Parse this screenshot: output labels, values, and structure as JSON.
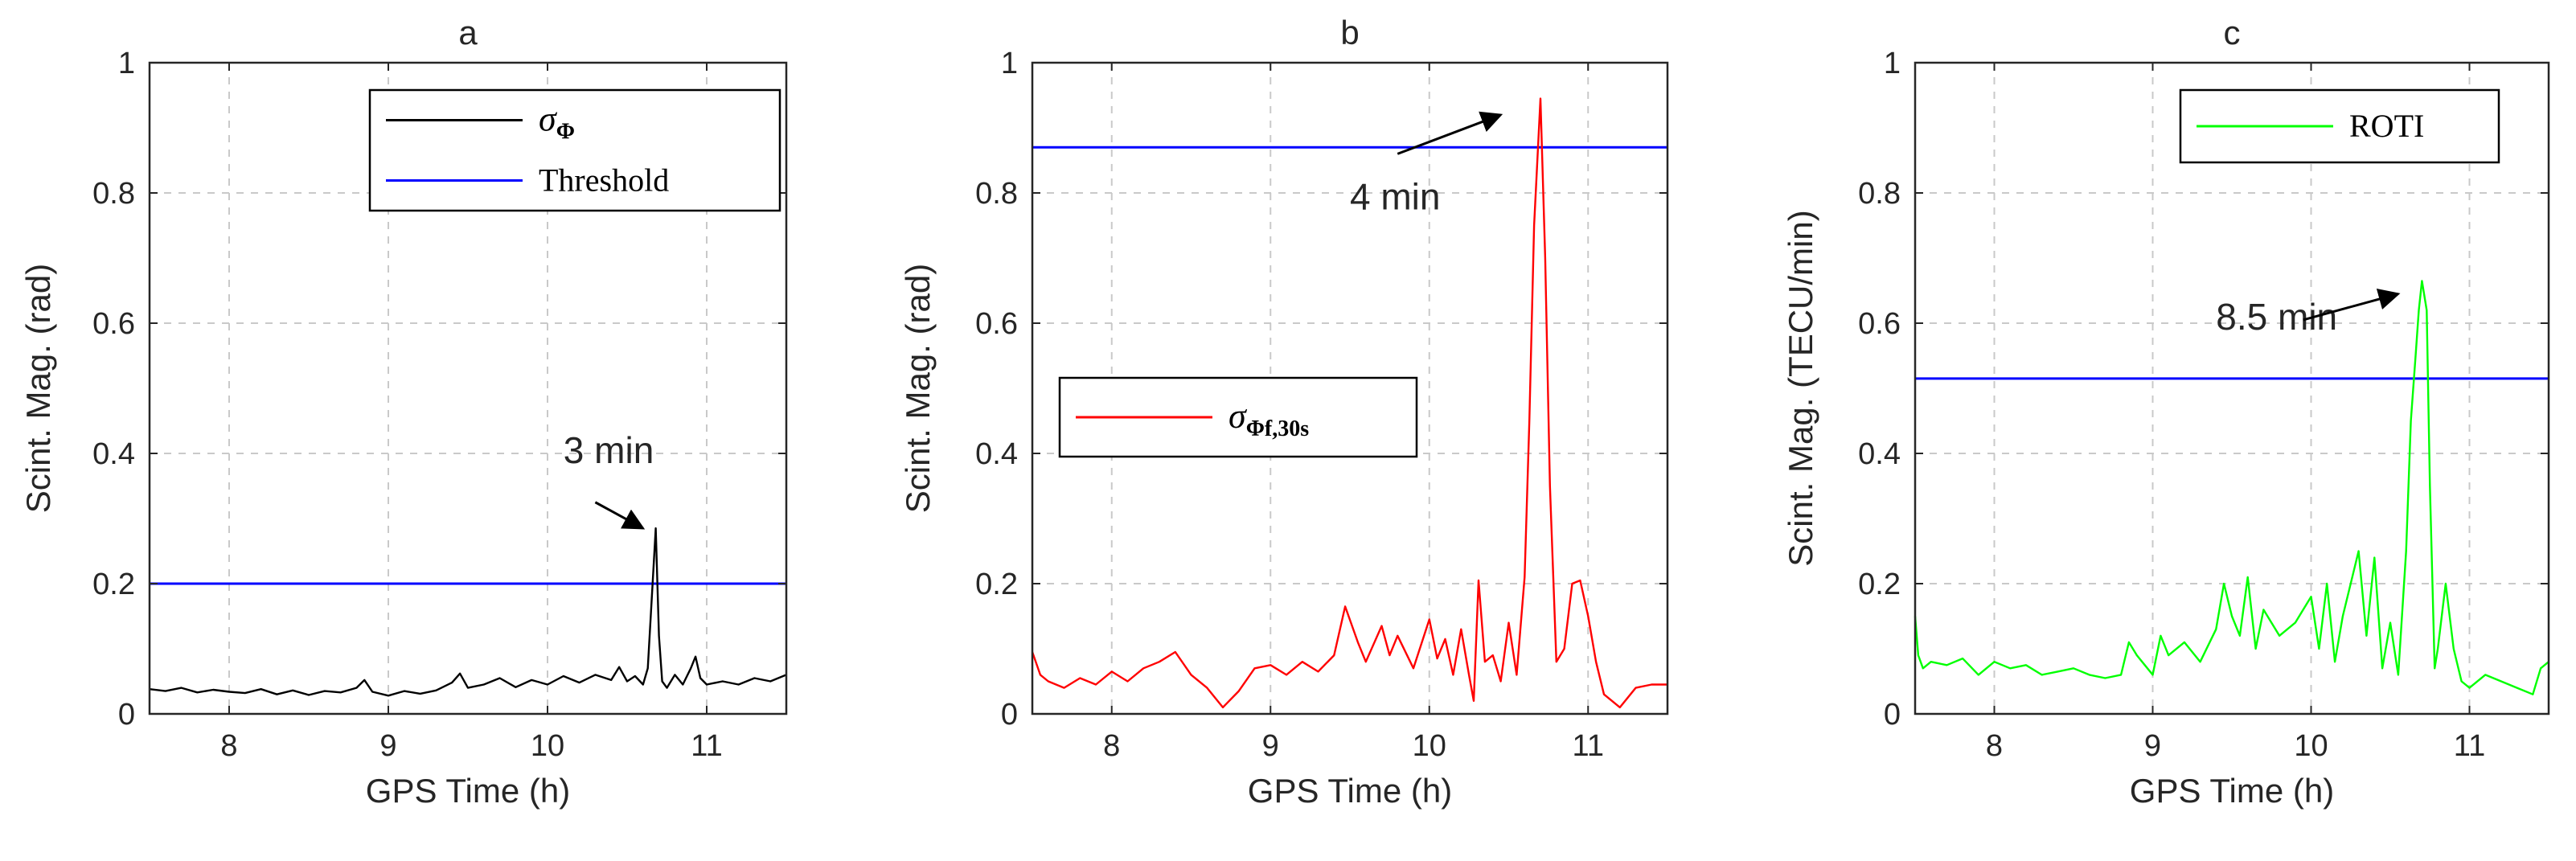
{
  "figure": {
    "description_labels": [
      "a",
      "b",
      "c"
    ]
  },
  "colors": {
    "black": "#000000",
    "blue": "#0000ff",
    "red": "#ff0000",
    "green": "#00ff00",
    "grid": "#c9c9c9",
    "axis": "#262626"
  },
  "chart_data": [
    {
      "type": "line",
      "title": "a",
      "xlabel": "GPS Time (h)",
      "ylabel": "Scint. Mag. (rad)",
      "xlim": [
        7.5,
        11.5
      ],
      "ylim": [
        0,
        1
      ],
      "xticks": [
        8,
        9,
        10,
        11
      ],
      "yticks": [
        0,
        0.2,
        0.4,
        0.6,
        0.8,
        1
      ],
      "xtick_labels": [
        "8",
        "9",
        "10",
        "11"
      ],
      "ytick_labels": [
        "0",
        "0.2",
        "0.4",
        "0.6",
        "0.8",
        "1"
      ],
      "grid": true,
      "legend_position": "top-right",
      "legend": [
        {
          "name": "σ",
          "subscript": "Φ",
          "color": "#000000",
          "kind": "series"
        },
        {
          "name": "Threshold",
          "subscript": "",
          "color": "#0000ff",
          "kind": "threshold"
        }
      ],
      "series": [
        {
          "name": "σΦ",
          "color": "#000000",
          "x": [
            7.5,
            7.6,
            7.7,
            7.8,
            7.9,
            8.0,
            8.1,
            8.2,
            8.3,
            8.4,
            8.5,
            8.6,
            8.7,
            8.8,
            8.85,
            8.9,
            9.0,
            9.1,
            9.2,
            9.3,
            9.4,
            9.45,
            9.5,
            9.6,
            9.7,
            9.8,
            9.9,
            10.0,
            10.1,
            10.2,
            10.3,
            10.4,
            10.45,
            10.5,
            10.55,
            10.6,
            10.63,
            10.66,
            10.68,
            10.7,
            10.72,
            10.75,
            10.8,
            10.85,
            10.9,
            10.93,
            10.96,
            11.0,
            11.1,
            11.2,
            11.3,
            11.4,
            11.5
          ],
          "y": [
            0.038,
            0.035,
            0.04,
            0.033,
            0.037,
            0.034,
            0.032,
            0.038,
            0.03,
            0.036,
            0.029,
            0.035,
            0.033,
            0.04,
            0.052,
            0.034,
            0.028,
            0.035,
            0.031,
            0.036,
            0.048,
            0.062,
            0.04,
            0.045,
            0.055,
            0.041,
            0.052,
            0.045,
            0.058,
            0.048,
            0.06,
            0.052,
            0.072,
            0.05,
            0.058,
            0.045,
            0.07,
            0.2,
            0.285,
            0.12,
            0.05,
            0.04,
            0.06,
            0.045,
            0.07,
            0.088,
            0.055,
            0.045,
            0.05,
            0.045,
            0.055,
            0.05,
            0.06
          ]
        }
      ],
      "threshold": 0.2,
      "annotation": {
        "text": "3 min",
        "text_x": 10.1,
        "text_y": 0.385,
        "arrow_from": [
          10.3,
          0.325
        ],
        "arrow_to": [
          10.6,
          0.285
        ]
      }
    },
    {
      "type": "line",
      "title": "b",
      "xlabel": "GPS Time (h)",
      "ylabel": "Scint. Mag. (rad)",
      "xlim": [
        7.5,
        11.5
      ],
      "ylim": [
        0,
        1
      ],
      "xticks": [
        8,
        9,
        10,
        11
      ],
      "yticks": [
        0,
        0.2,
        0.4,
        0.6,
        0.8,
        1
      ],
      "xtick_labels": [
        "8",
        "9",
        "10",
        "11"
      ],
      "ytick_labels": [
        "0",
        "0.2",
        "0.4",
        "0.6",
        "0.8",
        "1"
      ],
      "grid": true,
      "legend_position": "center-left",
      "legend": [
        {
          "name": "σ",
          "subscript": "Φf,30s",
          "color": "#ff0000",
          "kind": "series"
        }
      ],
      "series": [
        {
          "name": "σΦf,30s",
          "color": "#ff0000",
          "x": [
            7.5,
            7.55,
            7.6,
            7.7,
            7.8,
            7.9,
            8.0,
            8.1,
            8.2,
            8.3,
            8.4,
            8.5,
            8.6,
            8.7,
            8.8,
            8.9,
            9.0,
            9.1,
            9.2,
            9.3,
            9.4,
            9.47,
            9.55,
            9.6,
            9.7,
            9.75,
            9.8,
            9.9,
            10.0,
            10.05,
            10.1,
            10.15,
            10.2,
            10.25,
            10.28,
            10.31,
            10.35,
            10.4,
            10.45,
            10.5,
            10.55,
            10.6,
            10.63,
            10.66,
            10.7,
            10.73,
            10.76,
            10.8,
            10.85,
            10.9,
            10.95,
            11.0,
            11.05,
            11.1,
            11.2,
            11.3,
            11.4,
            11.5
          ],
          "y": [
            0.095,
            0.06,
            0.05,
            0.04,
            0.055,
            0.045,
            0.065,
            0.05,
            0.07,
            0.08,
            0.095,
            0.06,
            0.04,
            0.01,
            0.035,
            0.07,
            0.075,
            0.06,
            0.08,
            0.065,
            0.09,
            0.165,
            0.11,
            0.08,
            0.135,
            0.09,
            0.12,
            0.07,
            0.145,
            0.085,
            0.115,
            0.06,
            0.13,
            0.06,
            0.02,
            0.205,
            0.08,
            0.09,
            0.05,
            0.14,
            0.06,
            0.21,
            0.45,
            0.75,
            0.945,
            0.7,
            0.35,
            0.08,
            0.1,
            0.2,
            0.205,
            0.15,
            0.08,
            0.03,
            0.01,
            0.04,
            0.045,
            0.045
          ]
        }
      ],
      "threshold": 0.87,
      "annotation": {
        "text": "4 min",
        "text_x": 9.5,
        "text_y": 0.775,
        "arrow_from": [
          9.8,
          0.86
        ],
        "arrow_to": [
          10.45,
          0.92
        ]
      }
    },
    {
      "type": "line",
      "title": "c",
      "xlabel": "GPS Time (h)",
      "ylabel": "Scint. Mag. (TECU/min)",
      "xlim": [
        7.5,
        11.5
      ],
      "ylim": [
        0,
        1
      ],
      "xticks": [
        8,
        9,
        10,
        11
      ],
      "yticks": [
        0,
        0.2,
        0.4,
        0.6,
        0.8,
        1
      ],
      "xtick_labels": [
        "8",
        "9",
        "10",
        "11"
      ],
      "ytick_labels": [
        "0",
        "0.2",
        "0.4",
        "0.6",
        "0.8",
        "1"
      ],
      "grid": true,
      "legend_position": "top-right",
      "legend": [
        {
          "name": "ROTI",
          "subscript": "",
          "color": "#00ff00",
          "kind": "series"
        }
      ],
      "series": [
        {
          "name": "ROTI",
          "color": "#00ff00",
          "x": [
            7.5,
            7.52,
            7.55,
            7.6,
            7.7,
            7.8,
            7.9,
            8.0,
            8.1,
            8.2,
            8.3,
            8.4,
            8.5,
            8.6,
            8.7,
            8.8,
            8.85,
            8.9,
            9.0,
            9.05,
            9.1,
            9.2,
            9.3,
            9.4,
            9.45,
            9.5,
            9.55,
            9.6,
            9.65,
            9.7,
            9.8,
            9.9,
            10.0,
            10.05,
            10.1,
            10.15,
            10.2,
            10.3,
            10.35,
            10.4,
            10.45,
            10.5,
            10.55,
            10.6,
            10.63,
            10.66,
            10.68,
            10.7,
            10.73,
            10.75,
            10.78,
            10.8,
            10.85,
            10.9,
            10.95,
            11.0,
            11.1,
            11.2,
            11.3,
            11.4,
            11.45,
            11.5
          ],
          "y": [
            0.15,
            0.09,
            0.07,
            0.08,
            0.075,
            0.085,
            0.06,
            0.08,
            0.07,
            0.075,
            0.06,
            0.065,
            0.07,
            0.06,
            0.055,
            0.06,
            0.11,
            0.09,
            0.06,
            0.12,
            0.09,
            0.11,
            0.08,
            0.13,
            0.2,
            0.15,
            0.12,
            0.21,
            0.1,
            0.16,
            0.12,
            0.14,
            0.18,
            0.1,
            0.2,
            0.08,
            0.15,
            0.25,
            0.12,
            0.24,
            0.07,
            0.14,
            0.06,
            0.25,
            0.45,
            0.55,
            0.62,
            0.665,
            0.62,
            0.35,
            0.07,
            0.1,
            0.2,
            0.1,
            0.05,
            0.04,
            0.06,
            0.05,
            0.04,
            0.03,
            0.07,
            0.08
          ]
        }
      ],
      "threshold": 0.515,
      "annotation": {
        "text": "8.5 min",
        "text_x": 9.4,
        "text_y": 0.59,
        "arrow_from": [
          9.95,
          0.605
        ],
        "arrow_to": [
          10.55,
          0.645
        ]
      }
    }
  ]
}
